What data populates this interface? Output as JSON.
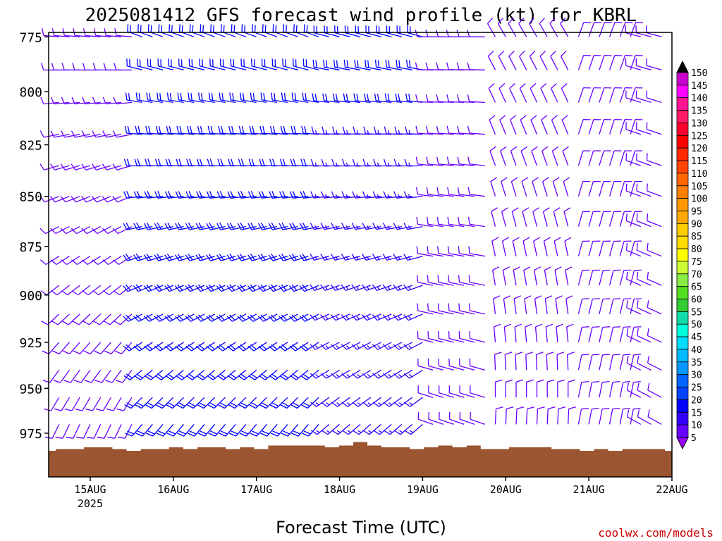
{
  "chart_data": {
    "type": "wind-barb-time-height",
    "title": "2025081412 GFS forecast wind profile (kt) for KBRL",
    "xlabel": "Forecast Time (UTC)",
    "ylabel": "",
    "credit": "coolwx.com/models",
    "x_ticks": [
      {
        "label": "15AUG",
        "sub": "2025",
        "hour": 12
      },
      {
        "label": "16AUG",
        "sub": "",
        "hour": 36
      },
      {
        "label": "17AUG",
        "sub": "",
        "hour": 60
      },
      {
        "label": "18AUG",
        "sub": "",
        "hour": 84
      },
      {
        "label": "19AUG",
        "sub": "",
        "hour": 108
      },
      {
        "label": "20AUG",
        "sub": "",
        "hour": 132
      },
      {
        "label": "21AUG",
        "sub": "",
        "hour": 156
      },
      {
        "label": "22AUG",
        "sub": "",
        "hour": 180
      }
    ],
    "xlim_hours": [
      0,
      180
    ],
    "y_ticks": [
      "775",
      "800",
      "825",
      "850",
      "875",
      "900",
      "925",
      "950",
      "975"
    ],
    "ylim_hpa": [
      773,
      1000
    ],
    "log_pressure_axis": true,
    "forecast_step_hours": 3,
    "pressure_levels": [
      775,
      790,
      805,
      820,
      835,
      850,
      865,
      880,
      895,
      910,
      925,
      940,
      955,
      970,
      985
    ],
    "wind_epochs": [
      {
        "until_hour": 24,
        "dir_top": 275,
        "dir_bottom": 200,
        "spd_top": 12,
        "spd_bottom": 8
      },
      {
        "until_hour": 80,
        "dir_top": 290,
        "dir_bottom": 215,
        "spd_top": 20,
        "spd_bottom": 18
      },
      {
        "until_hour": 108,
        "dir_top": 285,
        "dir_bottom": 225,
        "spd_top": 18,
        "spd_bottom": 15
      },
      {
        "until_hour": 126,
        "dir_top": 270,
        "dir_bottom": 290,
        "spd_top": 12,
        "spd_bottom": 12
      },
      {
        "until_hour": 150,
        "dir_top": 330,
        "dir_bottom": 5,
        "spd_top": 8,
        "spd_bottom": 10
      },
      {
        "until_hour": 170,
        "dir_top": 20,
        "dir_bottom": 10,
        "spd_top": 10,
        "spd_bottom": 10
      },
      {
        "until_hour": 180,
        "dir_top": 285,
        "dir_bottom": 300,
        "spd_top": 12,
        "spd_bottom": 12
      }
    ],
    "terrain": {
      "color": "#9b5530",
      "surface_pressure": [
        985,
        984,
        984,
        983,
        983,
        984,
        985,
        984,
        984,
        983,
        984,
        983,
        983,
        984,
        983,
        984,
        982,
        982,
        982,
        982,
        983,
        982,
        980,
        982,
        983,
        983,
        984,
        983,
        982,
        983,
        982,
        984,
        984,
        983,
        983,
        983,
        984,
        984,
        985,
        984,
        985,
        984,
        984,
        984,
        985
      ]
    },
    "colorbar": {
      "levels": [
        "150",
        "145",
        "140",
        "135",
        "130",
        "125",
        "120",
        "115",
        "110",
        "105",
        "100",
        "95",
        "90",
        "85",
        "80",
        "75",
        "70",
        "65",
        "60",
        "55",
        "50",
        "45",
        "40",
        "35",
        "30",
        "25",
        "20",
        "15",
        "10",
        "5"
      ],
      "colors": [
        "#cc00cc",
        "#ff00ff",
        "#ff1493",
        "#ff1a66",
        "#ff0033",
        "#ff0000",
        "#ff2a00",
        "#ff4400",
        "#ff6600",
        "#ff8000",
        "#ff9900",
        "#ffaa00",
        "#ffcc00",
        "#ffdd00",
        "#ffff00",
        "#ccff33",
        "#88ee44",
        "#55dd22",
        "#33cc33",
        "#11ddaa",
        "#00ffdd",
        "#00ddff",
        "#00bbff",
        "#0099ff",
        "#0066ff",
        "#0044ff",
        "#0000ff",
        "#3300ff",
        "#6600ff",
        "#9900ff"
      ]
    }
  }
}
